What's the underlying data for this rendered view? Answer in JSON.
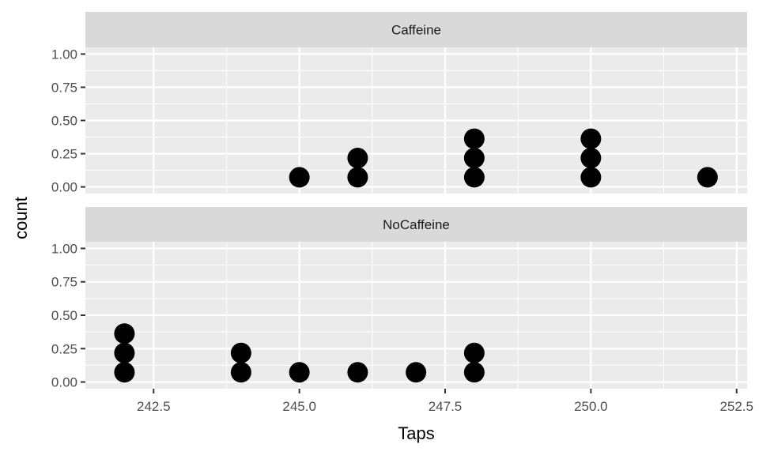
{
  "chart_data": {
    "type": "dotplot",
    "xlabel": "Taps",
    "ylabel": "count",
    "xlim": [
      241.33,
      252.68
    ],
    "ylim": [
      -0.05,
      1.05
    ],
    "x_ticks": [
      242.5,
      245.0,
      247.5,
      250.0,
      252.5
    ],
    "x_tick_labels": [
      "242.5",
      "245.0",
      "247.5",
      "250.0",
      "252.5"
    ],
    "y_ticks": [
      0,
      0.25,
      0.5,
      0.75,
      1.0
    ],
    "y_tick_labels": [
      "0.00",
      "0.25",
      "0.50",
      "0.75",
      "1.00"
    ],
    "dot_stack_step": 0.145,
    "grid": true,
    "facets": [
      {
        "label": "Caffeine",
        "points": [
          {
            "x": 245,
            "count": 1
          },
          {
            "x": 246,
            "count": 2
          },
          {
            "x": 248,
            "count": 3
          },
          {
            "x": 250,
            "count": 3
          },
          {
            "x": 252,
            "count": 1
          }
        ]
      },
      {
        "label": "NoCaffeine",
        "points": [
          {
            "x": 242,
            "count": 3
          },
          {
            "x": 244,
            "count": 2
          },
          {
            "x": 245,
            "count": 1
          },
          {
            "x": 246,
            "count": 1
          },
          {
            "x": 247,
            "count": 1
          },
          {
            "x": 248,
            "count": 2
          }
        ]
      }
    ],
    "colors": {
      "panel": "#ebebeb",
      "strip": "#d9d9d9",
      "grid": "#ffffff",
      "dot": "#000000",
      "text": "#4d4d4d"
    }
  }
}
